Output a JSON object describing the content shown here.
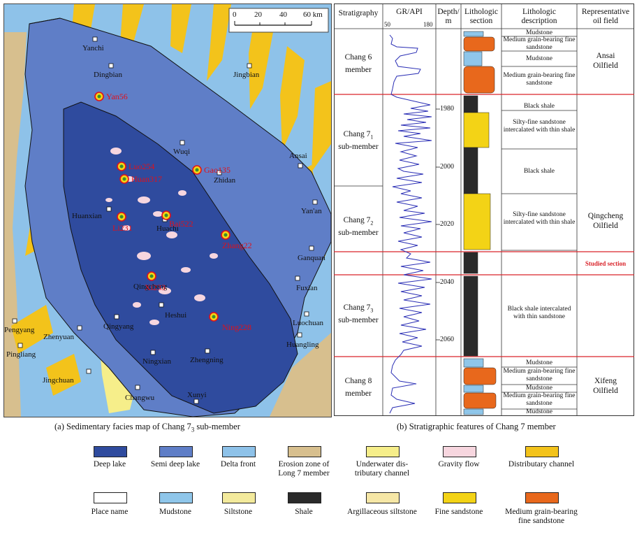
{
  "map": {
    "scale_ticks": [
      "0",
      "20",
      "40",
      "60 km"
    ],
    "places": [
      {
        "name": "Yanchi"
      },
      {
        "name": "Dingbian"
      },
      {
        "name": "Jingbian"
      },
      {
        "name": "Wuqi"
      },
      {
        "name": "Ansai"
      },
      {
        "name": "Zhidan"
      },
      {
        "name": "Yan'an"
      },
      {
        "name": "Huanxian"
      },
      {
        "name": "Huachi"
      },
      {
        "name": "Ganquan"
      },
      {
        "name": "Qingcheng"
      },
      {
        "name": "Fuxian"
      },
      {
        "name": "Heshui"
      },
      {
        "name": "Luochuan"
      },
      {
        "name": "Pengyang"
      },
      {
        "name": "Qingyang"
      },
      {
        "name": "Huangling"
      },
      {
        "name": "Zhenyuan"
      },
      {
        "name": "Pingliang"
      },
      {
        "name": "Ningxian"
      },
      {
        "name": "Zhengning"
      },
      {
        "name": "Jingchuan"
      },
      {
        "name": "Changwu"
      },
      {
        "name": "Xunyi"
      }
    ],
    "wells": [
      {
        "name": "Yan56"
      },
      {
        "name": "Luo254"
      },
      {
        "name": "Gao135"
      },
      {
        "name": "Huan317"
      },
      {
        "name": "Li231"
      },
      {
        "name": "Bai522"
      },
      {
        "name": "Zhang22"
      },
      {
        "name": "Xi233"
      },
      {
        "name": "Ning228"
      }
    ],
    "caption_prefix": "(a) Sedimentary facies map of Chang 7",
    "caption_sub": "3",
    "caption_suffix": " sub-member"
  },
  "strat": {
    "headers": {
      "stratigraphy": "Stratigraphy",
      "gr": "GR/API",
      "gr_min": "50",
      "gr_max": "180",
      "depth": "Depth/\nm",
      "lith_section": "Lithologic\nsection",
      "lith_desc": "Lithologic\ndescription",
      "oil_field": "Representative\noil field"
    },
    "members": [
      {
        "main": "Chang 6",
        "sub": "",
        "rest": "member"
      },
      {
        "main": "Chang 7",
        "sub": "1",
        "rest": "sub-member"
      },
      {
        "main": "Chang 7",
        "sub": "2",
        "rest": "sub-member"
      },
      {
        "main": "Chang 7",
        "sub": "3",
        "rest": "sub-member"
      },
      {
        "main": "Chang 8",
        "sub": "",
        "rest": "member"
      }
    ],
    "depth_ticks": [
      {
        "value": 1980
      },
      {
        "value": 2000
      },
      {
        "value": 2020
      },
      {
        "value": 2040
      },
      {
        "value": 2060
      }
    ],
    "descriptions": [
      "Mudstone",
      "Medium grain-bearing fine sandstone",
      "Mudstone",
      "Medium grain-bearing fine sandstone",
      "Black shale",
      "Silty-fine sandstone intercalated with thin shale",
      "Black shale",
      "Silty-fine sandstone intercalated with thin shale",
      "Studied section",
      "Black shale intercalated with thin sandstone",
      "Mudstone",
      "Medium grain-bearing fine sandstone",
      "Mudstone",
      "Medium grain-bearing fine sandstone",
      "Mudstone"
    ],
    "oil_fields": [
      "Ansai\nOilfield",
      "Qingcheng\nOilfield",
      "Xifeng\nOilfield"
    ],
    "caption": "(b) Stratigraphic features of Chang 7 member"
  },
  "legend": {
    "items": [
      {
        "label": "Deep lake",
        "color": "#2f4b9e"
      },
      {
        "label": "Semi deep lake",
        "color": "#5f7ec7"
      },
      {
        "label": "Delta front",
        "color": "#8ec2e9"
      },
      {
        "label": "Erosion zone of\nLong 7 member",
        "color": "#d7bf8e"
      },
      {
        "label": "Underwater dis-\ntributary channel",
        "color": "#f6ee8a"
      },
      {
        "label": "Gravity flow",
        "color": "#f7d6df"
      },
      {
        "label": "Distributary channel",
        "color": "#f3c31b"
      },
      {
        "label": "Place name",
        "color": "#ffffff"
      },
      {
        "label": "Mudstone",
        "color": "#8fc6ea"
      },
      {
        "label": "Siltstone",
        "color": "#f3ea9c"
      },
      {
        "label": "Shale",
        "color": "#2a2a2a"
      },
      {
        "label": "Argillaceous siltstone",
        "color": "#f6e7a6"
      },
      {
        "label": "Fine sandstone",
        "color": "#f3d316"
      },
      {
        "label": "Medium grain-bearing\nfine sandstone",
        "color": "#e8681c"
      }
    ]
  }
}
